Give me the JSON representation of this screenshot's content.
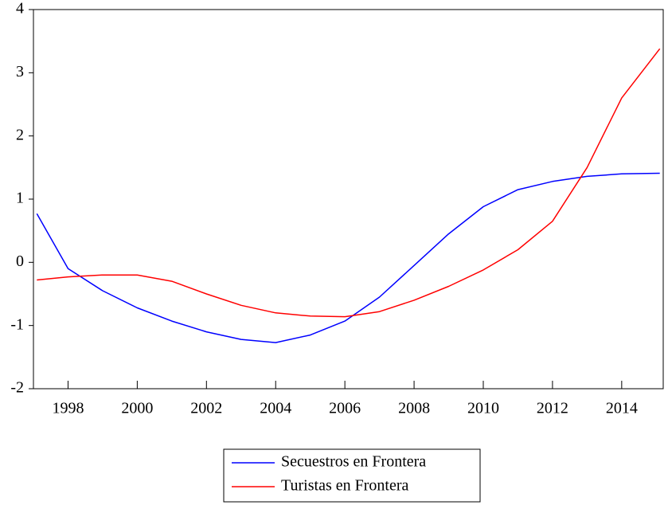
{
  "chart_data": {
    "type": "line",
    "x": [
      1997.1,
      1998,
      1999,
      2000,
      2001,
      2002,
      2003,
      2004,
      2005,
      2006,
      2007,
      2008,
      2009,
      2010,
      2011,
      2012,
      2013,
      2014,
      2015.1
    ],
    "series": [
      {
        "name": "Secuestros en Frontera",
        "color": "#0000ff",
        "values": [
          0.77,
          -0.1,
          -0.45,
          -0.72,
          -0.93,
          -1.1,
          -1.22,
          -1.27,
          -1.15,
          -0.93,
          -0.55,
          -0.05,
          0.45,
          0.88,
          1.15,
          1.28,
          1.36,
          1.4,
          1.41
        ]
      },
      {
        "name": "Turistas en Frontera",
        "color": "#ff0000",
        "values": [
          -0.28,
          -0.23,
          -0.2,
          -0.2,
          -0.3,
          -0.5,
          -0.68,
          -0.8,
          -0.85,
          -0.86,
          -0.78,
          -0.6,
          -0.38,
          -0.12,
          0.2,
          0.65,
          1.5,
          2.6,
          3.38
        ]
      }
    ],
    "xlim": [
      1997,
      2015.2
    ],
    "xticks": [
      1998,
      2000,
      2002,
      2004,
      2006,
      2008,
      2010,
      2012,
      2014
    ],
    "ylim": [
      -2,
      4
    ],
    "yticks": [
      -2,
      -1,
      0,
      1,
      2,
      3,
      4
    ],
    "legend": "bottom"
  }
}
